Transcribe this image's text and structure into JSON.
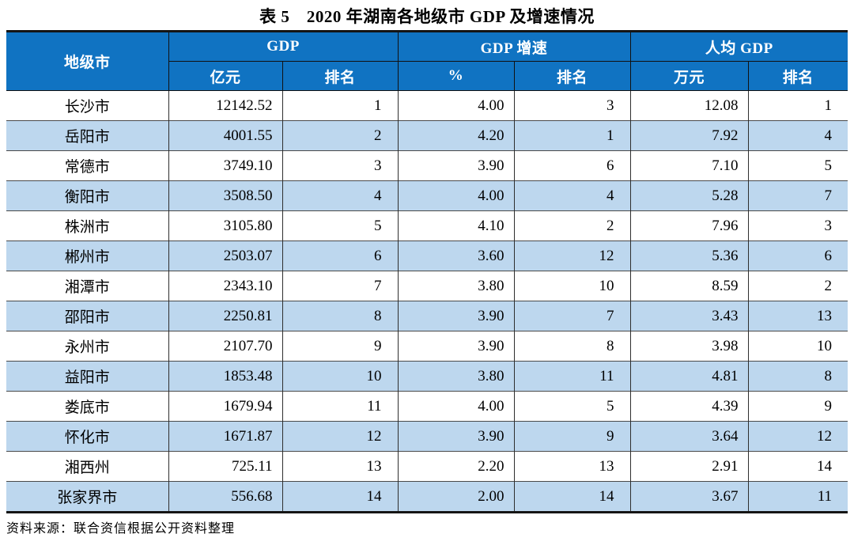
{
  "title": "表 5　2020 年湖南各地级市 GDP 及增速情况",
  "colors": {
    "header_bg": "#1073C2",
    "header_text": "#FFFFFF",
    "row_alt_bg": "#BDD7EE",
    "border_dark": "#151515"
  },
  "table": {
    "group_headers": [
      "地级市",
      "GDP",
      "GDP 增速",
      "人均 GDP"
    ],
    "sub_headers": [
      "亿元",
      "排名",
      "%",
      "排名",
      "万元",
      "排名"
    ],
    "rows": [
      [
        "长沙市",
        "12142.52",
        "1",
        "4.00",
        "3",
        "12.08",
        "1"
      ],
      [
        "岳阳市",
        "4001.55",
        "2",
        "4.20",
        "1",
        "7.92",
        "4"
      ],
      [
        "常德市",
        "3749.10",
        "3",
        "3.90",
        "6",
        "7.10",
        "5"
      ],
      [
        "衡阳市",
        "3508.50",
        "4",
        "4.00",
        "4",
        "5.28",
        "7"
      ],
      [
        "株洲市",
        "3105.80",
        "5",
        "4.10",
        "2",
        "7.96",
        "3"
      ],
      [
        "郴州市",
        "2503.07",
        "6",
        "3.60",
        "12",
        "5.36",
        "6"
      ],
      [
        "湘潭市",
        "2343.10",
        "7",
        "3.80",
        "10",
        "8.59",
        "2"
      ],
      [
        "邵阳市",
        "2250.81",
        "8",
        "3.90",
        "7",
        "3.43",
        "13"
      ],
      [
        "永州市",
        "2107.70",
        "9",
        "3.90",
        "8",
        "3.98",
        "10"
      ],
      [
        "益阳市",
        "1853.48",
        "10",
        "3.80",
        "11",
        "4.81",
        "8"
      ],
      [
        "娄底市",
        "1679.94",
        "11",
        "4.00",
        "5",
        "4.39",
        "9"
      ],
      [
        "怀化市",
        "1671.87",
        "12",
        "3.90",
        "9",
        "3.64",
        "12"
      ],
      [
        "湘西州",
        "725.11",
        "13",
        "2.20",
        "13",
        "2.91",
        "14"
      ],
      [
        "张家界市",
        "556.68",
        "14",
        "2.00",
        "14",
        "3.67",
        "11"
      ]
    ]
  },
  "source_note": "资料来源：联合资信根据公开资料整理"
}
